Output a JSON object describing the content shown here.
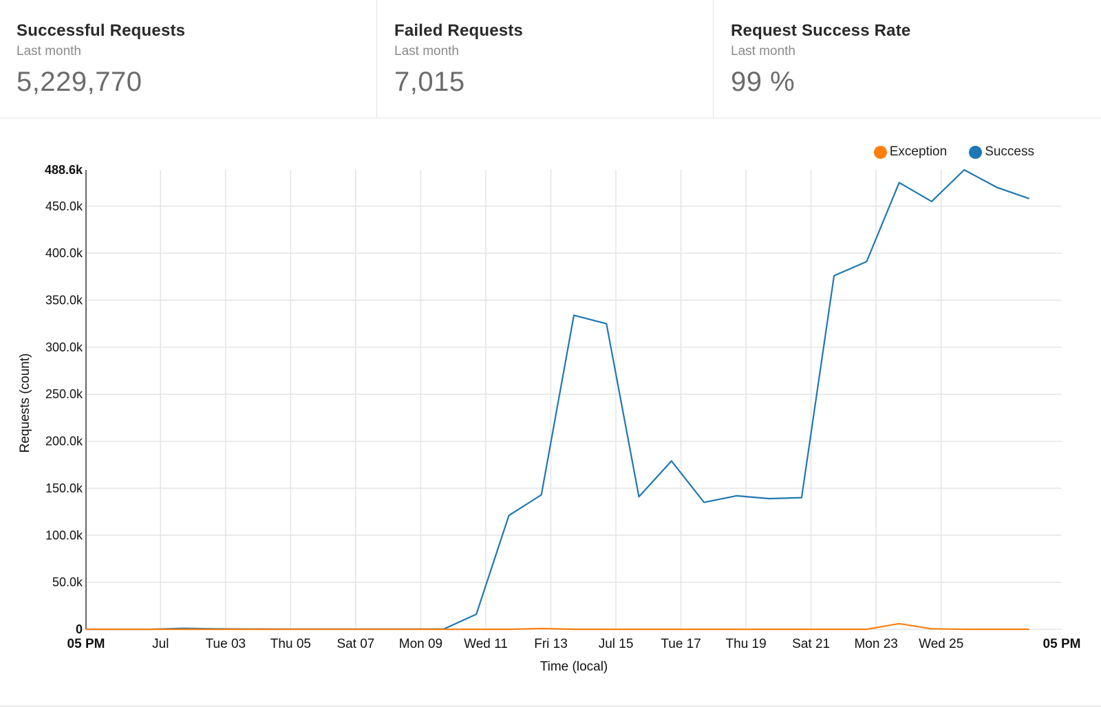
{
  "cards": [
    {
      "title": "Successful Requests",
      "subtitle": "Last month",
      "value": "5,229,770"
    },
    {
      "title": "Failed Requests",
      "subtitle": "Last month",
      "value": "7,015"
    },
    {
      "title": "Request Success Rate",
      "subtitle": "Last month",
      "value": "99 %"
    }
  ],
  "legend": [
    {
      "label": "Exception",
      "color": "#ff7f0e"
    },
    {
      "label": "Success",
      "color": "#1f77b4"
    }
  ],
  "chart_data": {
    "type": "line",
    "xlabel": "Time (local)",
    "ylabel": "Requests (count)",
    "ylim": [
      0,
      488600
    ],
    "y_ticks": [
      {
        "value": 0,
        "label": "0",
        "bold": true
      },
      {
        "value": 50000,
        "label": "50.0k"
      },
      {
        "value": 100000,
        "label": "100.0k"
      },
      {
        "value": 150000,
        "label": "150.0k"
      },
      {
        "value": 200000,
        "label": "200.0k"
      },
      {
        "value": 250000,
        "label": "250.0k"
      },
      {
        "value": 300000,
        "label": "300.0k"
      },
      {
        "value": 350000,
        "label": "350.0k"
      },
      {
        "value": 400000,
        "label": "400.0k"
      },
      {
        "value": 450000,
        "label": "450.0k"
      },
      {
        "value": 488600,
        "label": "488.6k",
        "bold": true
      }
    ],
    "x_range": [
      "2018-06-28T17:00",
      "2018-07-28T17:00"
    ],
    "x_ticks": [
      {
        "time": "2018-06-28T17:00",
        "label": "05 PM",
        "bold": true
      },
      {
        "time": "2018-07-01T00:00",
        "label": "Jul"
      },
      {
        "time": "2018-07-03T00:00",
        "label": "Tue 03"
      },
      {
        "time": "2018-07-05T00:00",
        "label": "Thu 05"
      },
      {
        "time": "2018-07-07T00:00",
        "label": "Sat 07"
      },
      {
        "time": "2018-07-09T00:00",
        "label": "Mon 09"
      },
      {
        "time": "2018-07-11T00:00",
        "label": "Wed 11"
      },
      {
        "time": "2018-07-13T00:00",
        "label": "Fri 13"
      },
      {
        "time": "2018-07-15T00:00",
        "label": "Jul 15"
      },
      {
        "time": "2018-07-17T00:00",
        "label": "Tue 17"
      },
      {
        "time": "2018-07-19T00:00",
        "label": "Thu 19"
      },
      {
        "time": "2018-07-21T00:00",
        "label": "Sat 21"
      },
      {
        "time": "2018-07-23T00:00",
        "label": "Mon 23"
      },
      {
        "time": "2018-07-25T00:00",
        "label": "Wed 25"
      },
      {
        "time": "2018-07-28T17:00",
        "label": "05 PM",
        "bold": true
      }
    ],
    "series": [
      {
        "name": "Success",
        "color": "#1f77b4",
        "points": [
          [
            "2018-06-28T17:00",
            0
          ],
          [
            "2018-06-29T17:00",
            0
          ],
          [
            "2018-06-30T17:00",
            0
          ],
          [
            "2018-07-01T17:00",
            1000
          ],
          [
            "2018-07-02T17:00",
            500
          ],
          [
            "2018-07-03T17:00",
            300
          ],
          [
            "2018-07-04T17:00",
            200
          ],
          [
            "2018-07-05T17:00",
            200
          ],
          [
            "2018-07-06T17:00",
            200
          ],
          [
            "2018-07-07T17:00",
            200
          ],
          [
            "2018-07-08T17:00",
            200
          ],
          [
            "2018-07-09T17:00",
            300
          ],
          [
            "2018-07-10T17:00",
            16000
          ],
          [
            "2018-07-11T17:00",
            121000
          ],
          [
            "2018-07-12T17:00",
            143000
          ],
          [
            "2018-07-13T17:00",
            334000
          ],
          [
            "2018-07-14T17:00",
            325000
          ],
          [
            "2018-07-15T17:00",
            141000
          ],
          [
            "2018-07-16T17:00",
            179000
          ],
          [
            "2018-07-17T17:00",
            135000
          ],
          [
            "2018-07-18T17:00",
            142000
          ],
          [
            "2018-07-19T17:00",
            139000
          ],
          [
            "2018-07-20T17:00",
            140000
          ],
          [
            "2018-07-21T17:00",
            376000
          ],
          [
            "2018-07-22T17:00",
            391000
          ],
          [
            "2018-07-23T17:00",
            475000
          ],
          [
            "2018-07-24T17:00",
            455000
          ],
          [
            "2018-07-25T17:00",
            488600
          ],
          [
            "2018-07-26T17:00",
            470000
          ],
          [
            "2018-07-27T17:00",
            458000
          ]
        ]
      },
      {
        "name": "Exception",
        "color": "#ff7f0e",
        "points": [
          [
            "2018-06-28T17:00",
            0
          ],
          [
            "2018-07-10T17:00",
            0
          ],
          [
            "2018-07-11T17:00",
            0
          ],
          [
            "2018-07-12T17:00",
            800
          ],
          [
            "2018-07-13T17:00",
            0
          ],
          [
            "2018-07-22T17:00",
            0
          ],
          [
            "2018-07-23T17:00",
            6000
          ],
          [
            "2018-07-24T17:00",
            500
          ],
          [
            "2018-07-25T17:00",
            0
          ],
          [
            "2018-07-27T17:00",
            0
          ]
        ]
      }
    ]
  }
}
